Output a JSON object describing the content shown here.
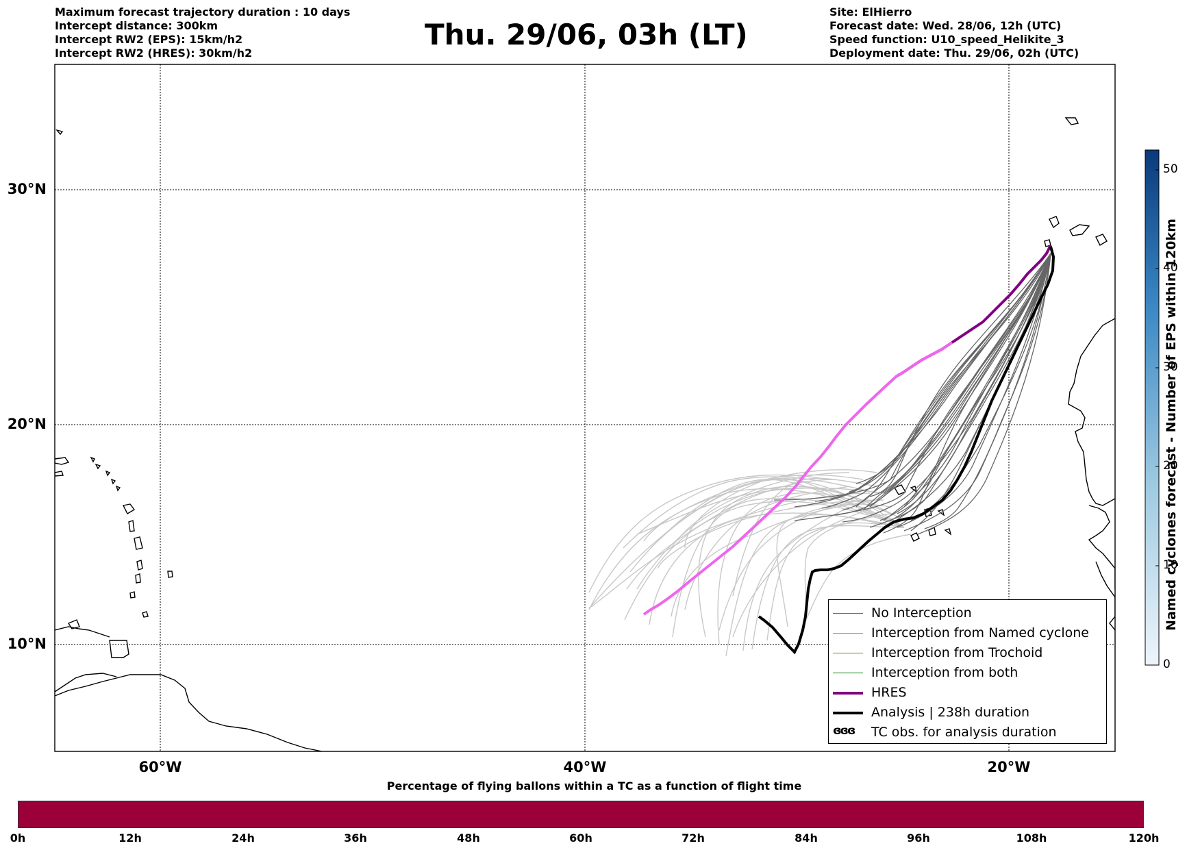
{
  "header_left": {
    "line1": "Maximum forecast trajectory duration : 10 days",
    "line2": "Intercept distance: 300km",
    "line3": "Intercept RW2 (EPS):  15km/h2",
    "line4": "Intercept RW2 (HRES): 30km/h2"
  },
  "title": "Thu. 29/06, 03h (LT)",
  "header_right": {
    "line1": "Site: ElHierro",
    "line2": "Forecast date: Wed. 28/06, 12h (UTC)",
    "line3": "Speed function: U10_speed_Helikite_3",
    "line4": "Deployment date: Thu. 29/06, 02h (UTC)"
  },
  "map": {
    "lat_labels": [
      "30°N",
      "20°N",
      "10°N"
    ],
    "lon_labels": [
      "60°W",
      "40°W",
      "20°W"
    ],
    "extent": {
      "lon": [
        -65,
        -15
      ],
      "lat": [
        5,
        35
      ]
    },
    "gridlines": true,
    "colors": {
      "no_interception": "#666666",
      "named_cyclone": "#ff5a1f",
      "trochoid": "#808000",
      "both": "#008000",
      "hres": "#800080",
      "hres_light": "#ee66ee",
      "analysis": "#000000",
      "ensemble_light": "#c8c8c8"
    }
  },
  "legend": {
    "items": [
      {
        "label": "No Interception",
        "symbol": "thin-gray-line"
      },
      {
        "label": "Interception from Named cyclone",
        "symbol": "thin-orange-line"
      },
      {
        "label": "Interception from Trochoid",
        "symbol": "thin-olive-line"
      },
      {
        "label": "Interception from both",
        "symbol": "thin-green-line"
      },
      {
        "label": "HRES",
        "symbol": "thick-purple-line"
      },
      {
        "label": "Analysis | 238h duration",
        "symbol": "thick-black-line"
      },
      {
        "label": "TC obs. for analysis duration",
        "symbol": "cyclone-symbols",
        "glyph": "ɞɞɞ"
      }
    ]
  },
  "colorbar": {
    "label": "Named cyclones forecast - Number of EPS within 120km",
    "ticks": [
      "0",
      "10",
      "20",
      "30",
      "40",
      "50"
    ],
    "range": [
      0,
      52
    ]
  },
  "percentage_bar": {
    "title": "Percentage of flying ballons within a TC as a function of flight time",
    "ticks": [
      "0h",
      "12h",
      "24h",
      "36h",
      "48h",
      "60h",
      "72h",
      "84h",
      "96h",
      "108h",
      "120h"
    ],
    "color": "#9b0039"
  }
}
